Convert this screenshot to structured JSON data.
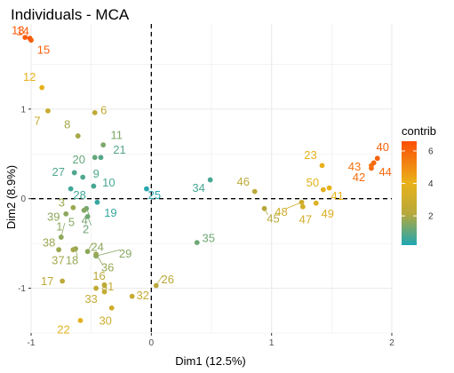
{
  "chart_data": {
    "type": "scatter",
    "title": "Individuals - MCA",
    "xlabel": "Dim1 (12.5%)",
    "ylabel": "Dim2 (8.9%)",
    "xlim": [
      -1.0,
      2.0
    ],
    "ylim": [
      -1.5,
      1.95
    ],
    "xticks": [
      -1,
      0,
      1,
      2
    ],
    "yticks": [
      -1,
      0,
      1
    ],
    "grid": true,
    "reference_lines": {
      "x": 0,
      "y": 0,
      "style": "dashed"
    },
    "legend": {
      "title": "contrib",
      "type": "colorbar",
      "placement": "right",
      "range": [
        0.2,
        6.6
      ],
      "ticks": [
        2,
        4,
        6
      ],
      "colors": [
        "#1fa7b3",
        "#b7a83c",
        "#e9b21a",
        "#fc4e07"
      ]
    },
    "points": [
      {
        "label": "1",
        "x": -0.75,
        "y": -0.43,
        "contrib": 1.6
      },
      {
        "label": "2",
        "x": -0.53,
        "y": -0.2,
        "contrib": 1.2
      },
      {
        "label": "3",
        "x": -0.65,
        "y": -0.1,
        "contrib": 1.8
      },
      {
        "label": "4",
        "x": -0.54,
        "y": -0.11,
        "contrib": 1.3
      },
      {
        "label": "5",
        "x": -0.56,
        "y": -0.13,
        "contrib": 1.5
      },
      {
        "label": "6",
        "x": -0.47,
        "y": 0.96,
        "contrib": 2.5
      },
      {
        "label": "7",
        "x": -0.86,
        "y": 0.98,
        "contrib": 2.8
      },
      {
        "label": "8",
        "x": -0.61,
        "y": 0.7,
        "contrib": 1.9
      },
      {
        "label": "9",
        "x": -0.57,
        "y": 0.24,
        "contrib": 0.8
      },
      {
        "label": "10",
        "x": -0.48,
        "y": 0.14,
        "contrib": 0.7
      },
      {
        "label": "11",
        "x": -0.4,
        "y": 0.6,
        "contrib": 1.4
      },
      {
        "label": "12",
        "x": -0.91,
        "y": 1.24,
        "contrib": 3.9
      },
      {
        "label": "13",
        "x": -1.05,
        "y": 1.8,
        "contrib": 6.3
      },
      {
        "label": "14",
        "x": -1.01,
        "y": 1.79,
        "contrib": 6.4
      },
      {
        "label": "15",
        "x": -1.0,
        "y": 1.77,
        "contrib": 6.2
      },
      {
        "label": "16",
        "x": -0.39,
        "y": -0.97,
        "contrib": 2.3
      },
      {
        "label": "17",
        "x": -0.74,
        "y": -0.92,
        "contrib": 2.4
      },
      {
        "label": "18",
        "x": -0.63,
        "y": -0.56,
        "contrib": 1.7
      },
      {
        "label": "19",
        "x": -0.45,
        "y": -0.04,
        "contrib": 0.5
      },
      {
        "label": "20",
        "x": -0.47,
        "y": 0.46,
        "contrib": 1.1
      },
      {
        "label": "21",
        "x": -0.42,
        "y": 0.46,
        "contrib": 0.9
      },
      {
        "label": "22",
        "x": -0.59,
        "y": -1.36,
        "contrib": 3.8
      },
      {
        "label": "23",
        "x": 1.42,
        "y": 0.37,
        "contrib": 4.1
      },
      {
        "label": "24",
        "x": -0.53,
        "y": -0.59,
        "contrib": 1.6
      },
      {
        "label": "25",
        "x": -0.04,
        "y": 0.11,
        "contrib": 0.3
      },
      {
        "label": "26",
        "x": 0.04,
        "y": -0.97,
        "contrib": 2.2
      },
      {
        "label": "27",
        "x": -0.64,
        "y": 0.29,
        "contrib": 0.8
      },
      {
        "label": "28",
        "x": -0.67,
        "y": 0.11,
        "contrib": 0.6
      },
      {
        "label": "29",
        "x": -0.46,
        "y": -0.64,
        "contrib": 1.5
      },
      {
        "label": "30",
        "x": -0.33,
        "y": -1.22,
        "contrib": 3.0
      },
      {
        "label": "31",
        "x": -0.46,
        "y": -1.0,
        "contrib": 2.5
      },
      {
        "label": "32",
        "x": -0.16,
        "y": -1.09,
        "contrib": 2.7
      },
      {
        "label": "33",
        "x": -0.39,
        "y": -1.04,
        "contrib": 2.6
      },
      {
        "label": "34",
        "x": 0.49,
        "y": 0.21,
        "contrib": 0.7
      },
      {
        "label": "35",
        "x": 0.38,
        "y": -0.49,
        "contrib": 1.2
      },
      {
        "label": "36",
        "x": -0.46,
        "y": -0.62,
        "contrib": 1.7
      },
      {
        "label": "37",
        "x": -0.65,
        "y": -0.57,
        "contrib": 1.9
      },
      {
        "label": "38",
        "x": -0.77,
        "y": -0.57,
        "contrib": 1.8
      },
      {
        "label": "39",
        "x": -0.71,
        "y": -0.17,
        "contrib": 1.6
      },
      {
        "label": "40",
        "x": 1.88,
        "y": 0.45,
        "contrib": 6.1
      },
      {
        "label": "41",
        "x": 1.48,
        "y": 0.12,
        "contrib": 4.0
      },
      {
        "label": "42",
        "x": 1.83,
        "y": 0.34,
        "contrib": 5.8
      },
      {
        "label": "43",
        "x": 1.83,
        "y": 0.37,
        "contrib": 5.7
      },
      {
        "label": "44",
        "x": 1.85,
        "y": 0.4,
        "contrib": 5.9
      },
      {
        "label": "45",
        "x": 0.94,
        "y": -0.11,
        "contrib": 2.1
      },
      {
        "label": "46",
        "x": 0.86,
        "y": 0.08,
        "contrib": 2.3
      },
      {
        "label": "47",
        "x": 1.26,
        "y": -0.09,
        "contrib": 3.2
      },
      {
        "label": "48",
        "x": 1.25,
        "y": -0.04,
        "contrib": 3.0
      },
      {
        "label": "49",
        "x": 1.37,
        "y": -0.05,
        "contrib": 3.6
      },
      {
        "label": "50",
        "x": 1.43,
        "y": 0.1,
        "contrib": 3.8
      }
    ]
  }
}
